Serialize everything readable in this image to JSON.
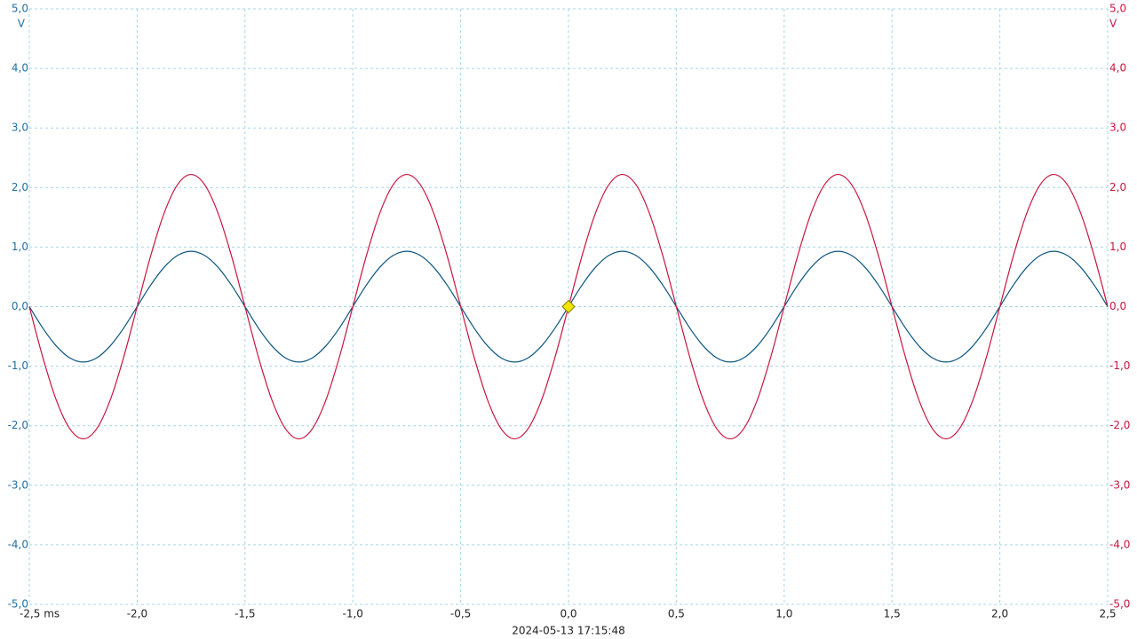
{
  "chart_data": {
    "type": "line",
    "timestamp": "2024-05-13 17:15:48",
    "xlim": [
      -2.5,
      2.5
    ],
    "xticks": [
      {
        "value": -2.5,
        "label": "-2,5 ms"
      },
      {
        "value": -2,
        "label": "-2,0"
      },
      {
        "value": -1.5,
        "label": "-1,5"
      },
      {
        "value": -1,
        "label": "-1,0"
      },
      {
        "value": -0.5,
        "label": "-0,5"
      },
      {
        "value": 0,
        "label": "0,0"
      },
      {
        "value": 0.5,
        "label": "0,5"
      },
      {
        "value": 1,
        "label": "1,0"
      },
      {
        "value": 1.5,
        "label": "1,5"
      },
      {
        "value": 2,
        "label": "2,0"
      },
      {
        "value": 2.5,
        "label": "2,5"
      }
    ],
    "ylim": [
      -5,
      5
    ],
    "y_unit": "V",
    "yticks": [
      {
        "value": 5,
        "label": "5,0"
      },
      {
        "value": 4,
        "label": "4,0"
      },
      {
        "value": 3,
        "label": "3,0"
      },
      {
        "value": 2,
        "label": "2,0"
      },
      {
        "value": 1,
        "label": "1,0"
      },
      {
        "value": 0,
        "label": "0,0"
      },
      {
        "value": -1,
        "label": "-1,0"
      },
      {
        "value": -2,
        "label": "-2,0"
      },
      {
        "value": -3,
        "label": "-3,0"
      },
      {
        "value": -4,
        "label": "-4,0"
      },
      {
        "value": -5,
        "label": "-5,0"
      }
    ],
    "y2lim": [
      -5,
      5
    ],
    "y2_unit": "V",
    "y2ticks": [
      {
        "value": 5,
        "label": "5,0"
      },
      {
        "value": 4,
        "label": "4,0"
      },
      {
        "value": 3,
        "label": "3,0"
      },
      {
        "value": 2,
        "label": "2,0"
      },
      {
        "value": 1,
        "label": "1,0"
      },
      {
        "value": 0,
        "label": "0,0"
      },
      {
        "value": -1,
        "label": "-1,0"
      },
      {
        "value": -2,
        "label": "-2,0"
      },
      {
        "value": -3,
        "label": "-3,0"
      },
      {
        "value": -4,
        "label": "-4,0"
      },
      {
        "value": -5,
        "label": "-5,0"
      }
    ],
    "grid": true,
    "y_color": "#1f6ea6",
    "y2_color": "#c8163f",
    "trigger": {
      "x": 0,
      "y": 0,
      "color": "#f2e600"
    },
    "x": [
      -2.5,
      -2.4375,
      -2.375,
      -2.3125,
      -2.25,
      -2.1875,
      -2.125,
      -2.0625,
      -2,
      -1.9375,
      -1.875,
      -1.8125,
      -1.75,
      -1.6875,
      -1.625,
      -1.5625,
      -1.5,
      -1.4375,
      -1.375,
      -1.3125,
      -1.25,
      -1.1875,
      -1.125,
      -1.0625,
      -1,
      -0.9375,
      -0.875,
      -0.8125,
      -0.75,
      -0.6875,
      -0.625,
      -0.5625,
      -0.5,
      -0.4375,
      -0.375,
      -0.3125,
      -0.25,
      -0.1875,
      -0.125,
      -0.0625,
      0,
      0.0625,
      0.125,
      0.1875,
      0.25,
      0.3125,
      0.375,
      0.4375,
      0.5,
      0.5625,
      0.625,
      0.6875,
      0.75,
      0.8125,
      0.875,
      0.9375,
      1,
      1.0625,
      1.125,
      1.1875,
      1.25,
      1.3125,
      1.375,
      1.4375,
      1.5,
      1.5625,
      1.625,
      1.6875,
      1.75,
      1.8125,
      1.875,
      1.9375,
      2,
      2.0625,
      2.125,
      2.1875,
      2.25,
      2.3125,
      2.375,
      2.4375,
      2.5
    ],
    "series": [
      {
        "color": "#0b5580",
        "axis": "y",
        "values": [
          0,
          -0.36,
          -0.66,
          -0.86,
          -0.93,
          -0.86,
          -0.66,
          -0.36,
          0,
          0.36,
          0.66,
          0.86,
          0.93,
          0.86,
          0.66,
          0.36,
          0,
          -0.36,
          -0.66,
          -0.86,
          -0.93,
          -0.86,
          -0.66,
          -0.36,
          0,
          0.36,
          0.66,
          0.86,
          0.93,
          0.86,
          0.66,
          0.36,
          0,
          -0.36,
          -0.66,
          -0.86,
          -0.93,
          -0.86,
          -0.66,
          -0.36,
          0,
          0.36,
          0.66,
          0.86,
          0.93,
          0.86,
          0.66,
          0.36,
          0,
          -0.36,
          -0.66,
          -0.86,
          -0.93,
          -0.86,
          -0.66,
          -0.36,
          0,
          0.36,
          0.66,
          0.86,
          0.93,
          0.86,
          0.66,
          0.36,
          0,
          -0.36,
          -0.66,
          -0.86,
          -0.93,
          -0.86,
          -0.66,
          -0.36,
          0,
          0.36,
          0.66,
          0.86,
          0.93,
          0.86,
          0.66,
          0.36,
          0
        ]
      },
      {
        "color": "#c8163f",
        "axis": "y2",
        "values": [
          0,
          -0.85,
          -1.57,
          -2.05,
          -2.22,
          -2.05,
          -1.57,
          -0.85,
          0,
          0.85,
          1.57,
          2.05,
          2.22,
          2.05,
          1.57,
          0.85,
          0,
          -0.85,
          -1.57,
          -2.05,
          -2.22,
          -2.05,
          -1.57,
          -0.85,
          0,
          0.85,
          1.57,
          2.05,
          2.22,
          2.05,
          1.57,
          0.85,
          0,
          -0.85,
          -1.57,
          -2.05,
          -2.22,
          -2.05,
          -1.57,
          -0.85,
          0,
          0.85,
          1.57,
          2.05,
          2.22,
          2.05,
          1.57,
          0.85,
          0,
          -0.85,
          -1.57,
          -2.05,
          -2.22,
          -2.05,
          -1.57,
          -0.85,
          0,
          0.85,
          1.57,
          2.05,
          2.22,
          2.05,
          1.57,
          0.85,
          0,
          -0.85,
          -1.57,
          -2.05,
          -2.22,
          -2.05,
          -1.57,
          -0.85,
          0,
          0.85,
          1.57,
          2.05,
          2.22,
          2.05,
          1.57,
          0.85,
          0
        ]
      }
    ]
  }
}
